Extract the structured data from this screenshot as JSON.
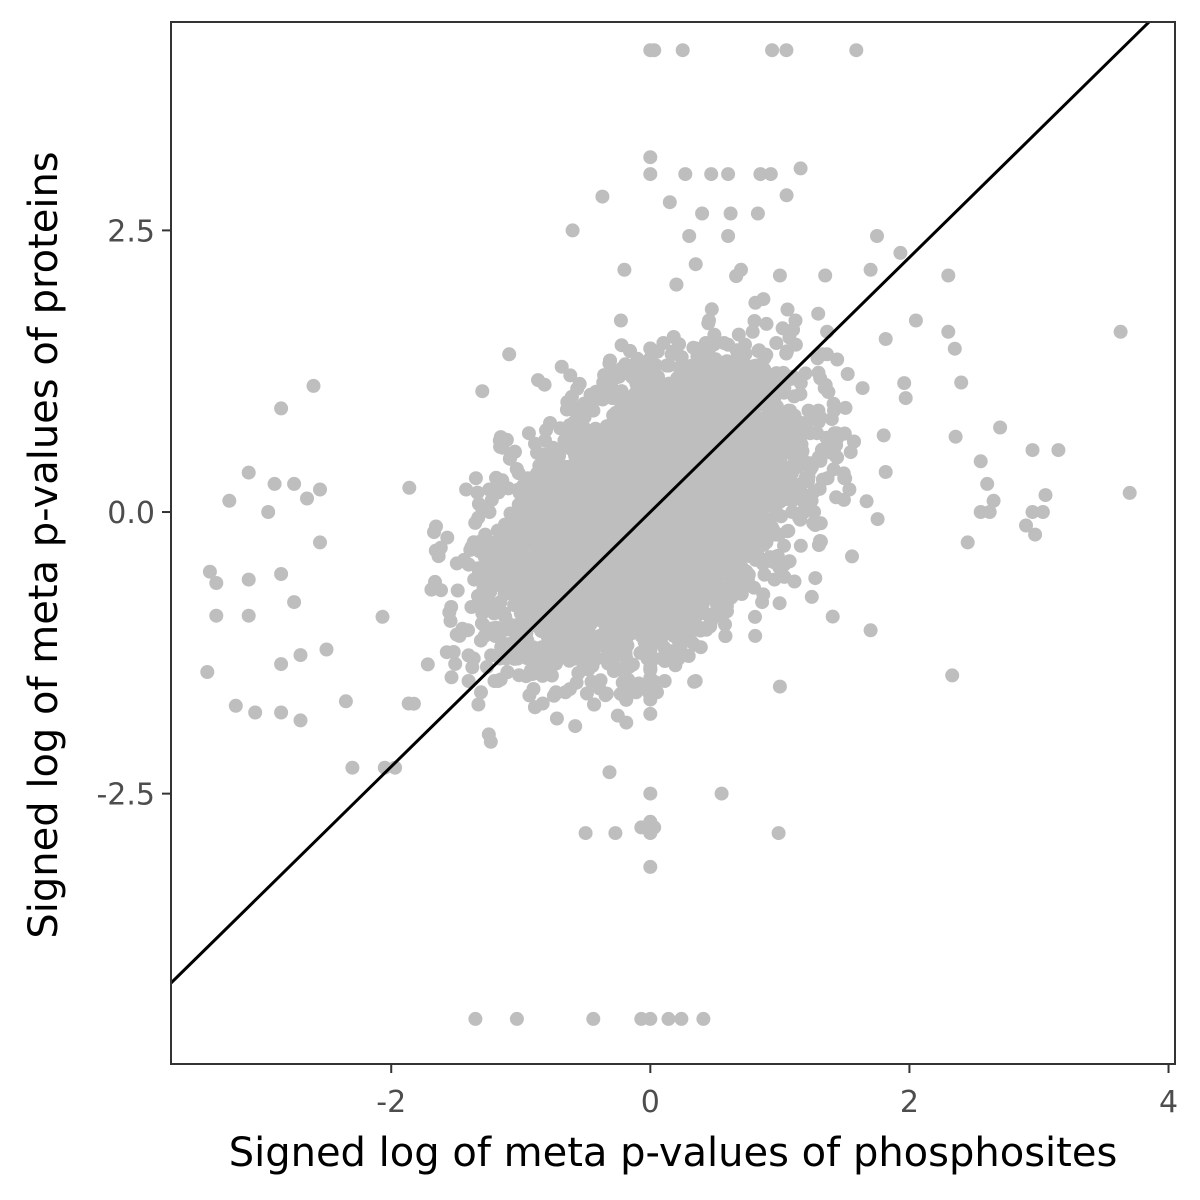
{
  "chart_data": {
    "type": "scatter",
    "title": "",
    "xlabel": "Signed log of meta p-values of phosphosites",
    "ylabel": "Signed log of meta p-values of proteins",
    "xlim": [
      -3.7,
      4.05
    ],
    "ylim": [
      -4.9,
      4.35
    ],
    "x_ticks": [
      -2,
      0,
      2,
      4
    ],
    "x_tick_labels": [
      "-2",
      "0",
      "2",
      "4"
    ],
    "y_ticks": [
      -2.5,
      0,
      2.5
    ],
    "y_tick_labels": [
      "-2.5",
      "0.0",
      "2.5"
    ],
    "grid": false,
    "point_color": "#bebebe",
    "line_color": "#000000",
    "reference_line": {
      "slope": 1.13,
      "intercept": 0
    },
    "core_cluster": {
      "description_only": false,
      "n": 7000,
      "x_sd": 0.55,
      "y_sd": 0.6,
      "correlation": 0.45
    },
    "points": [
      {
        "x": 0,
        "y": 4.1
      },
      {
        "x": 0.03,
        "y": 4.1
      },
      {
        "x": 0.25,
        "y": 4.1
      },
      {
        "x": 0.94,
        "y": 4.1
      },
      {
        "x": 1.05,
        "y": 4.1
      },
      {
        "x": 1.59,
        "y": 4.1
      },
      {
        "x": 0,
        "y": 3.15
      },
      {
        "x": 0,
        "y": 3.0
      },
      {
        "x": 0.27,
        "y": 3.0
      },
      {
        "x": 0.47,
        "y": 3.0
      },
      {
        "x": 0.6,
        "y": 3.0
      },
      {
        "x": 0.85,
        "y": 3.0
      },
      {
        "x": 1.16,
        "y": 3.05
      },
      {
        "x": 0.93,
        "y": 3.0
      },
      {
        "x": -0.37,
        "y": 2.8
      },
      {
        "x": 0.15,
        "y": 2.75
      },
      {
        "x": 0.4,
        "y": 2.65
      },
      {
        "x": 0.62,
        "y": 2.65
      },
      {
        "x": 0.83,
        "y": 2.65
      },
      {
        "x": -0.6,
        "y": 2.5
      },
      {
        "x": 0.3,
        "y": 2.45
      },
      {
        "x": 0.6,
        "y": 2.45
      },
      {
        "x": 1.75,
        "y": 2.45
      },
      {
        "x": 1.93,
        "y": 2.3
      },
      {
        "x": 2.3,
        "y": 2.1
      },
      {
        "x": -0.2,
        "y": 2.15
      },
      {
        "x": 0.35,
        "y": 2.2
      },
      {
        "x": 0.7,
        "y": 2.15
      },
      {
        "x": 1.0,
        "y": 2.1
      },
      {
        "x": 1.35,
        "y": 2.1
      },
      {
        "x": 1.7,
        "y": 2.15
      },
      {
        "x": 2.05,
        "y": 1.7
      },
      {
        "x": 2.3,
        "y": 1.6
      },
      {
        "x": 2.35,
        "y": 1.45
      },
      {
        "x": 2.4,
        "y": 1.15
      },
      {
        "x": 3.63,
        "y": 1.6
      },
      {
        "x": 2.55,
        "y": 0.45
      },
      {
        "x": 2.6,
        "y": 0.25
      },
      {
        "x": 2.7,
        "y": 0.75
      },
      {
        "x": 2.95,
        "y": 0.55
      },
      {
        "x": 3.15,
        "y": 0.55
      },
      {
        "x": 3.05,
        "y": 0.15
      },
      {
        "x": 3.7,
        "y": 0.17
      },
      {
        "x": 2.55,
        "y": 0.0
      },
      {
        "x": 2.62,
        "y": 0.0
      },
      {
        "x": 2.65,
        "y": 0.1
      },
      {
        "x": 2.95,
        "y": 0.0
      },
      {
        "x": 3.03,
        "y": 0.0
      },
      {
        "x": 2.9,
        "y": -0.12
      },
      {
        "x": 2.97,
        "y": -0.2
      },
      {
        "x": 2.45,
        "y": -0.27
      },
      {
        "x": 2.33,
        "y": -1.45
      },
      {
        "x": 1.7,
        "y": -1.05
      },
      {
        "x": 1.0,
        "y": -1.55
      },
      {
        "x": -2.85,
        "y": 0.92
      },
      {
        "x": -2.6,
        "y": 1.12
      },
      {
        "x": -2.9,
        "y": 0.25
      },
      {
        "x": -3.1,
        "y": 0.35
      },
      {
        "x": -3.25,
        "y": 0.1
      },
      {
        "x": -2.95,
        "y": 0.0
      },
      {
        "x": -2.75,
        "y": 0.25
      },
      {
        "x": -2.55,
        "y": 0.2
      },
      {
        "x": -2.65,
        "y": 0.12
      },
      {
        "x": -3.4,
        "y": -0.53
      },
      {
        "x": -3.35,
        "y": -0.63
      },
      {
        "x": -3.35,
        "y": -0.92
      },
      {
        "x": -3.1,
        "y": -0.6
      },
      {
        "x": -2.85,
        "y": -0.55
      },
      {
        "x": -3.1,
        "y": -0.92
      },
      {
        "x": -2.75,
        "y": -0.8
      },
      {
        "x": -2.55,
        "y": -0.27
      },
      {
        "x": -3.42,
        "y": -1.42
      },
      {
        "x": -2.85,
        "y": -1.35
      },
      {
        "x": -2.7,
        "y": -1.27
      },
      {
        "x": -2.5,
        "y": -1.22
      },
      {
        "x": -3.2,
        "y": -1.72
      },
      {
        "x": -3.05,
        "y": -1.78
      },
      {
        "x": -2.85,
        "y": -1.78
      },
      {
        "x": -2.7,
        "y": -1.85
      },
      {
        "x": -2.35,
        "y": -1.68
      },
      {
        "x": -2.3,
        "y": -2.27
      },
      {
        "x": -2.05,
        "y": -2.27
      },
      {
        "x": -1.97,
        "y": -2.27
      },
      {
        "x": -1.35,
        "y": -4.5
      },
      {
        "x": -1.03,
        "y": -4.5
      },
      {
        "x": -0.44,
        "y": -4.5
      },
      {
        "x": -0.07,
        "y": -4.5
      },
      {
        "x": 0.0,
        "y": -4.5
      },
      {
        "x": 0.14,
        "y": -4.5
      },
      {
        "x": 0.24,
        "y": -4.5
      },
      {
        "x": 0.41,
        "y": -4.5
      },
      {
        "x": -0.5,
        "y": -2.85
      },
      {
        "x": -0.27,
        "y": -2.85
      },
      {
        "x": -0.07,
        "y": -2.8
      },
      {
        "x": 0.0,
        "y": -2.75
      },
      {
        "x": 0.0,
        "y": -2.85
      },
      {
        "x": 0.03,
        "y": -2.8
      },
      {
        "x": 0.99,
        "y": -2.85
      },
      {
        "x": 0.0,
        "y": -3.15
      },
      {
        "x": 0.55,
        "y": -2.5
      },
      {
        "x": 0.0,
        "y": -2.5
      }
    ]
  }
}
